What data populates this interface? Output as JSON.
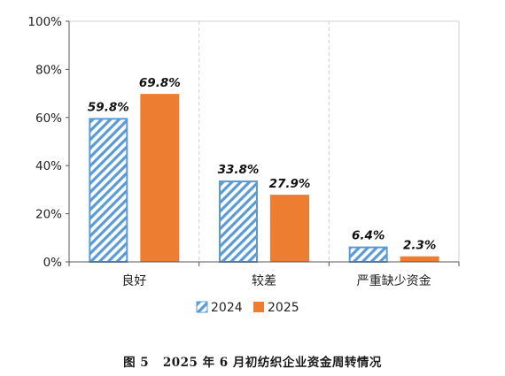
{
  "chart_data": {
    "type": "bar",
    "categories": [
      "良好",
      "较差",
      "严重缺少资金"
    ],
    "series": [
      {
        "name": "2024",
        "values": [
          59.8,
          33.8,
          6.4
        ],
        "labels": [
          "59.8%",
          "33.8%",
          "6.4%"
        ],
        "color": "#5b9bd5",
        "pattern": "diagonal-hatch"
      },
      {
        "name": "2025",
        "values": [
          69.8,
          27.9,
          2.3
        ],
        "labels": [
          "69.8%",
          "27.9%",
          "2.3%"
        ],
        "color": "#ed7d31",
        "pattern": "solid"
      }
    ],
    "ylim": [
      0,
      100
    ],
    "yticks": [
      0,
      20,
      40,
      60,
      80,
      100
    ],
    "ytick_labels": [
      "0%",
      "20%",
      "40%",
      "60%",
      "80%",
      "100%"
    ],
    "grid": true,
    "legend_position": "bottom-center",
    "title": "",
    "xlabel": "",
    "ylabel": ""
  },
  "caption": {
    "figure_no": "图 5",
    "text": "2025 年 6 月初纺织企业资金周转情况"
  }
}
